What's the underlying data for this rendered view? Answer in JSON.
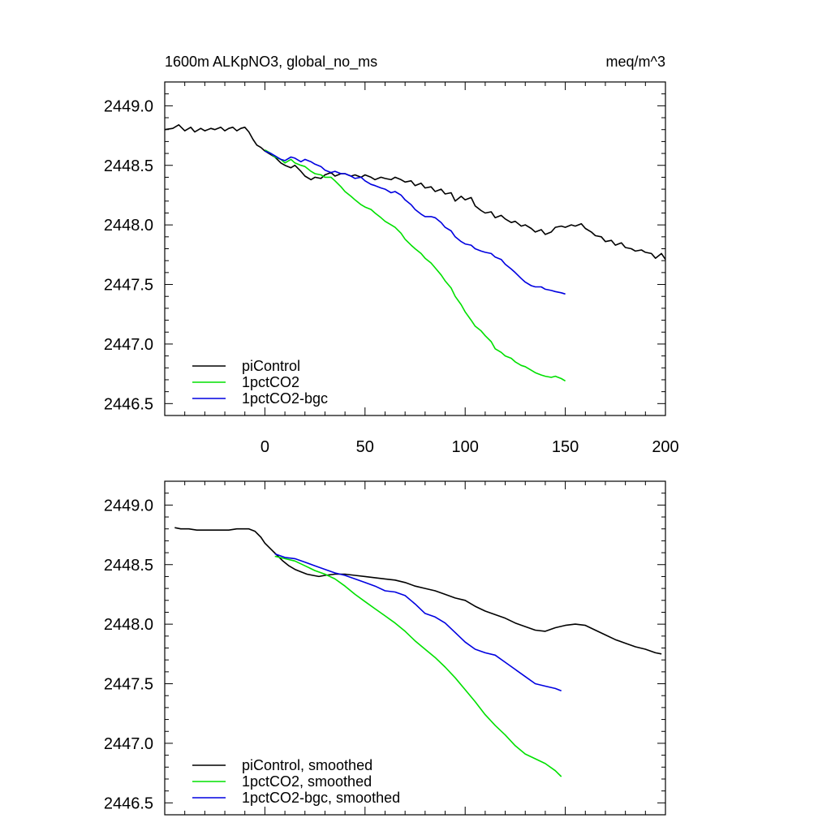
{
  "chart_data": [
    {
      "type": "line",
      "title_left": "1600m ALKpNO3, global_no_ms",
      "title_right": "meq/m^3",
      "xlim": [
        -50,
        200
      ],
      "ylim": [
        2446.4,
        2449.2
      ],
      "x_ticks": [
        0,
        50,
        100,
        150,
        200
      ],
      "x_tick_labels": [
        "0",
        "50",
        "100",
        "150",
        "200"
      ],
      "show_x_tick_labels": true,
      "y_ticks": [
        2446.5,
        2447.0,
        2447.5,
        2448.0,
        2448.5,
        2449.0
      ],
      "y_tick_labels": [
        "2446.5",
        "2447.0",
        "2447.5",
        "2448.0",
        "2448.5",
        "2449.0"
      ],
      "legend_position": "bottom-left",
      "series": [
        {
          "name": "piControl",
          "color": "#000000",
          "x": [
            -50,
            -46,
            -43,
            -40,
            -37,
            -35,
            -32,
            -30,
            -27,
            -25,
            -22,
            -20,
            -18,
            -16,
            -14,
            -12,
            -10,
            -8,
            -6,
            -4,
            -2,
            0,
            2,
            5,
            8,
            10,
            13,
            15,
            18,
            20,
            23,
            25,
            28,
            30,
            33,
            35,
            38,
            40,
            43,
            45,
            48,
            50,
            53,
            55,
            58,
            60,
            63,
            65,
            68,
            70,
            73,
            75,
            78,
            80,
            83,
            85,
            88,
            90,
            93,
            95,
            98,
            100,
            103,
            105,
            108,
            110,
            113,
            115,
            118,
            120,
            123,
            125,
            128,
            130,
            133,
            135,
            138,
            140,
            143,
            145,
            148,
            150,
            153,
            155,
            158,
            160,
            163,
            165,
            168,
            170,
            173,
            175,
            178,
            180,
            183,
            185,
            188,
            190,
            193,
            195,
            198,
            200
          ],
          "y": [
            2448.8,
            2448.81,
            2448.84,
            2448.79,
            2448.82,
            2448.78,
            2448.81,
            2448.79,
            2448.81,
            2448.8,
            2448.82,
            2448.79,
            2448.81,
            2448.82,
            2448.79,
            2448.81,
            2448.82,
            2448.78,
            2448.72,
            2448.67,
            2448.65,
            2448.62,
            2448.6,
            2448.57,
            2448.52,
            2448.5,
            2448.48,
            2448.5,
            2448.45,
            2448.41,
            2448.38,
            2448.4,
            2448.39,
            2448.42,
            2448.44,
            2448.41,
            2448.43,
            2448.43,
            2448.41,
            2448.42,
            2448.4,
            2448.42,
            2448.4,
            2448.38,
            2448.4,
            2448.39,
            2448.38,
            2448.4,
            2448.38,
            2448.36,
            2448.37,
            2448.33,
            2448.35,
            2448.31,
            2448.32,
            2448.28,
            2448.3,
            2448.26,
            2448.27,
            2448.2,
            2448.24,
            2448.21,
            2448.23,
            2448.16,
            2448.12,
            2448.1,
            2448.11,
            2448.06,
            2448.08,
            2448.05,
            2448.02,
            2448.03,
            2447.99,
            2448.0,
            2447.97,
            2447.94,
            2447.96,
            2447.92,
            2447.94,
            2447.98,
            2447.99,
            2447.98,
            2448.0,
            2447.99,
            2448.01,
            2447.97,
            2447.94,
            2447.91,
            2447.9,
            2447.86,
            2447.87,
            2447.83,
            2447.85,
            2447.81,
            2447.8,
            2447.78,
            2447.79,
            2447.77,
            2447.76,
            2447.72,
            2447.76,
            2447.71
          ]
        },
        {
          "name": "1pctCO2",
          "color": "#00e000",
          "x": [
            0,
            3,
            5,
            8,
            10,
            13,
            15,
            18,
            20,
            23,
            25,
            28,
            30,
            33,
            35,
            38,
            40,
            43,
            45,
            48,
            50,
            53,
            55,
            58,
            60,
            63,
            65,
            68,
            70,
            73,
            75,
            78,
            80,
            83,
            85,
            88,
            90,
            93,
            95,
            98,
            100,
            103,
            105,
            108,
            110,
            113,
            115,
            118,
            120,
            123,
            125,
            128,
            130,
            133,
            135,
            138,
            140,
            143,
            145,
            148,
            150
          ],
          "y": [
            2448.63,
            2448.6,
            2448.57,
            2448.55,
            2448.52,
            2448.55,
            2448.52,
            2448.5,
            2448.49,
            2448.45,
            2448.43,
            2448.42,
            2448.4,
            2448.4,
            2448.37,
            2448.32,
            2448.28,
            2448.24,
            2448.21,
            2448.17,
            2448.15,
            2448.13,
            2448.1,
            2448.06,
            2448.03,
            2448.0,
            2447.98,
            2447.93,
            2447.88,
            2447.83,
            2447.8,
            2447.76,
            2447.72,
            2447.68,
            2447.64,
            2447.58,
            2447.53,
            2447.47,
            2447.4,
            2447.33,
            2447.27,
            2447.2,
            2447.15,
            2447.11,
            2447.07,
            2447.02,
            2446.96,
            2446.93,
            2446.9,
            2446.88,
            2446.85,
            2446.82,
            2446.81,
            2446.78,
            2446.76,
            2446.74,
            2446.73,
            2446.72,
            2446.73,
            2446.71,
            2446.69
          ]
        },
        {
          "name": "1pctCO2-bgc",
          "color": "#0000e0",
          "x": [
            0,
            3,
            5,
            8,
            10,
            13,
            15,
            18,
            20,
            23,
            25,
            28,
            30,
            33,
            35,
            38,
            40,
            43,
            45,
            48,
            50,
            53,
            55,
            58,
            60,
            63,
            65,
            68,
            70,
            73,
            75,
            78,
            80,
            83,
            85,
            88,
            90,
            93,
            95,
            98,
            100,
            103,
            105,
            108,
            110,
            113,
            115,
            118,
            120,
            123,
            125,
            128,
            130,
            133,
            135,
            138,
            140,
            143,
            145,
            148,
            150
          ],
          "y": [
            2448.62,
            2448.6,
            2448.58,
            2448.55,
            2448.54,
            2448.57,
            2448.56,
            2448.53,
            2448.55,
            2448.53,
            2448.51,
            2448.49,
            2448.46,
            2448.44,
            2448.45,
            2448.43,
            2448.43,
            2448.41,
            2448.39,
            2448.4,
            2448.37,
            2448.34,
            2448.33,
            2448.31,
            2448.3,
            2448.27,
            2448.28,
            2448.25,
            2448.21,
            2448.17,
            2448.13,
            2448.09,
            2448.07,
            2448.07,
            2448.06,
            2448.02,
            2447.98,
            2447.95,
            2447.9,
            2447.86,
            2447.84,
            2447.83,
            2447.8,
            2447.78,
            2447.77,
            2447.76,
            2447.73,
            2447.71,
            2447.67,
            2447.63,
            2447.6,
            2447.55,
            2447.52,
            2447.49,
            2447.48,
            2447.48,
            2447.46,
            2447.45,
            2447.44,
            2447.43,
            2447.42
          ]
        }
      ]
    },
    {
      "type": "line",
      "xlim": [
        -50,
        200
      ],
      "ylim": [
        2446.4,
        2449.2
      ],
      "x_ticks": [
        0,
        50,
        100,
        150,
        200
      ],
      "show_x_tick_labels": false,
      "y_ticks": [
        2446.5,
        2447.0,
        2447.5,
        2448.0,
        2448.5,
        2449.0
      ],
      "y_tick_labels": [
        "2446.5",
        "2447.0",
        "2447.5",
        "2448.0",
        "2448.5",
        "2449.0"
      ],
      "legend_position": "bottom-left",
      "series": [
        {
          "name": "piControl, smoothed",
          "color": "#000000",
          "x": [
            -45,
            -42,
            -38,
            -34,
            -30,
            -26,
            -22,
            -18,
            -14,
            -11,
            -8,
            -5,
            -2,
            0,
            3,
            6,
            9,
            12,
            15,
            18,
            21,
            24,
            27,
            30,
            35,
            40,
            45,
            50,
            55,
            60,
            65,
            70,
            75,
            80,
            85,
            90,
            95,
            100,
            105,
            110,
            115,
            120,
            125,
            130,
            135,
            140,
            145,
            150,
            155,
            160,
            165,
            170,
            175,
            180,
            185,
            190,
            195,
            198
          ],
          "y": [
            2448.81,
            2448.8,
            2448.8,
            2448.79,
            2448.79,
            2448.79,
            2448.79,
            2448.79,
            2448.8,
            2448.8,
            2448.8,
            2448.78,
            2448.73,
            2448.68,
            2448.63,
            2448.58,
            2448.53,
            2448.49,
            2448.46,
            2448.44,
            2448.42,
            2448.41,
            2448.4,
            2448.41,
            2448.42,
            2448.42,
            2448.41,
            2448.4,
            2448.39,
            2448.38,
            2448.37,
            2448.35,
            2448.32,
            2448.3,
            2448.28,
            2448.25,
            2448.22,
            2448.2,
            2448.15,
            2448.11,
            2448.08,
            2448.05,
            2448.01,
            2447.98,
            2447.95,
            2447.94,
            2447.97,
            2447.99,
            2448.0,
            2447.99,
            2447.95,
            2447.91,
            2447.87,
            2447.84,
            2447.81,
            2447.79,
            2447.76,
            2447.75
          ]
        },
        {
          "name": "1pctCO2, smoothed",
          "color": "#00e000",
          "x": [
            5,
            10,
            15,
            20,
            25,
            30,
            35,
            40,
            45,
            50,
            55,
            60,
            65,
            70,
            75,
            80,
            85,
            90,
            95,
            100,
            105,
            110,
            115,
            120,
            125,
            130,
            135,
            140,
            145,
            148
          ],
          "y": [
            2448.57,
            2448.55,
            2448.53,
            2448.49,
            2448.45,
            2448.42,
            2448.38,
            2448.32,
            2448.25,
            2448.19,
            2448.13,
            2448.07,
            2448.01,
            2447.94,
            2447.86,
            2447.79,
            2447.72,
            2447.64,
            2447.55,
            2447.45,
            2447.35,
            2447.24,
            2447.15,
            2447.07,
            2446.98,
            2446.91,
            2446.87,
            2446.83,
            2446.77,
            2446.72
          ]
        },
        {
          "name": "1pctCO2-bgc, smoothed",
          "color": "#0000e0",
          "x": [
            5,
            10,
            15,
            20,
            25,
            30,
            35,
            40,
            45,
            50,
            55,
            60,
            65,
            70,
            75,
            80,
            85,
            90,
            95,
            100,
            105,
            110,
            115,
            120,
            125,
            130,
            135,
            140,
            145,
            148
          ],
          "y": [
            2448.59,
            2448.56,
            2448.55,
            2448.52,
            2448.49,
            2448.46,
            2448.43,
            2448.41,
            2448.38,
            2448.35,
            2448.32,
            2448.28,
            2448.27,
            2448.24,
            2448.17,
            2448.09,
            2448.06,
            2448.01,
            2447.93,
            2447.85,
            2447.79,
            2447.76,
            2447.74,
            2447.68,
            2447.62,
            2447.56,
            2447.5,
            2447.48,
            2447.46,
            2447.44
          ]
        }
      ]
    }
  ]
}
